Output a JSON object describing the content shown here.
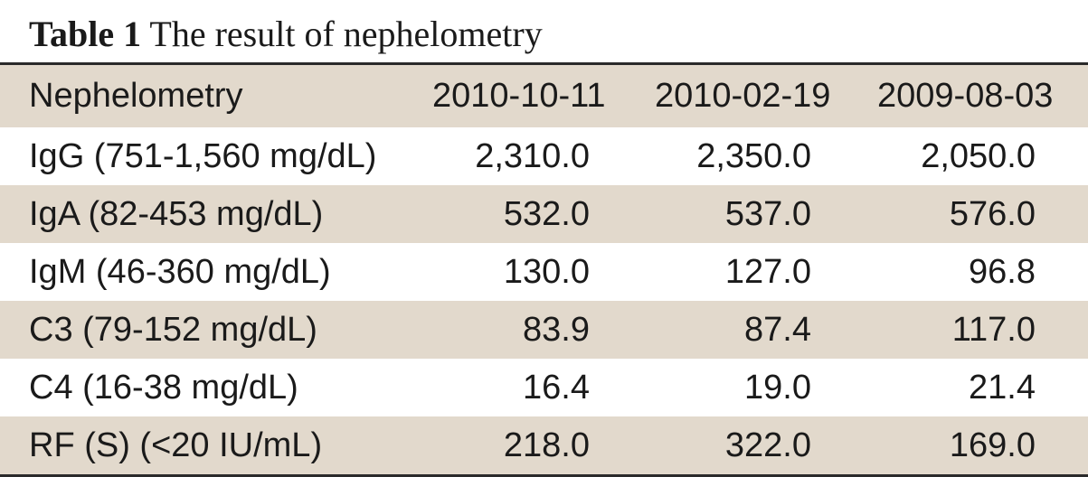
{
  "caption": {
    "label": "Table 1",
    "title": "The result of nephelometry"
  },
  "table": {
    "headers": [
      "Nephelometry",
      "2010-10-11",
      "2010-02-19",
      "2009-08-03"
    ],
    "rows": [
      [
        "IgG (751-1,560 mg/dL)",
        "2,310.0",
        "2,350.0",
        "2,050.0"
      ],
      [
        "IgA (82-453 mg/dL)",
        "532.0",
        "537.0",
        "576.0"
      ],
      [
        "IgM (46-360 mg/dL)",
        "130.0",
        "127.0",
        "96.8"
      ],
      [
        "C3 (79-152 mg/dL)",
        "83.9",
        "87.4",
        "117.0"
      ],
      [
        "C4 (16-38 mg/dL)",
        "16.4",
        "19.0",
        "21.4"
      ],
      [
        "RF (S) (<20 IU/mL)",
        "218.0",
        "322.0",
        "169.0"
      ]
    ]
  },
  "colors": {
    "shade": "#e2d9cc",
    "rule": "#2a2a2a",
    "text": "#1a1a1a"
  }
}
